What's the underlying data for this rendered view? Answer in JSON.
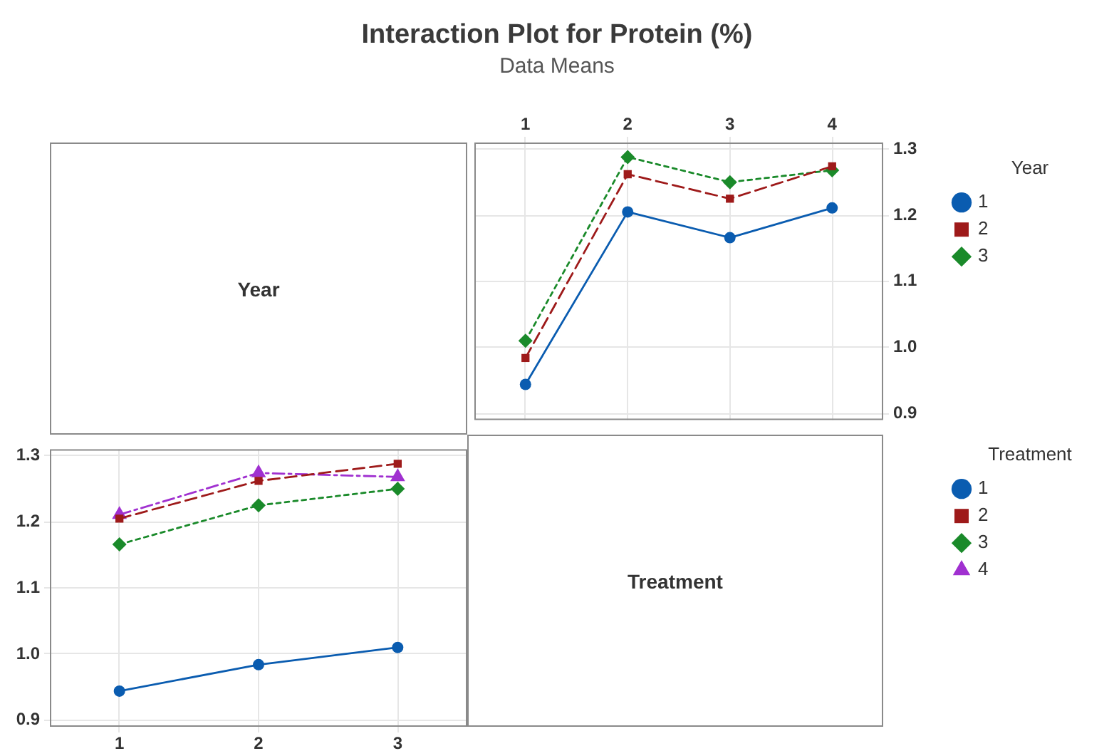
{
  "chart_data": [
    {
      "type": "other",
      "title": "Interaction Plot for Protein (%)",
      "subtitle": "Data Means",
      "annotations": [
        "Year"
      ]
    },
    {
      "type": "line",
      "categories": [
        "1",
        "2",
        "3",
        "4"
      ],
      "series": [
        {
          "name": "1",
          "color": "#0a5cb0",
          "marker": "circle",
          "line_style": "solid",
          "values": [
            0.944,
            1.205,
            1.166,
            1.211
          ]
        },
        {
          "name": "2",
          "color": "#9e1a1a",
          "marker": "square",
          "line_style": "dashed",
          "values": [
            0.984,
            1.262,
            1.225,
            1.274
          ]
        },
        {
          "name": "3",
          "color": "#1a8a2a",
          "marker": "diamond",
          "line_style": "dotted",
          "values": [
            1.01,
            1.288,
            1.25,
            1.268
          ]
        }
      ],
      "ylim": [
        0.89,
        1.31
      ],
      "yticks": [
        0.9,
        {
          "value": 1,
          "label": "1.0"
        },
        1.1,
        1.2,
        1.3
      ],
      "grid": true,
      "legend": "right",
      "legend_title": "Year"
    },
    {
      "type": "line",
      "categories": [
        "1",
        "2",
        "3"
      ],
      "series": [
        {
          "name": "1",
          "color": "#0a5cb0",
          "marker": "circle",
          "line_style": "solid",
          "values": [
            0.944,
            0.984,
            1.01
          ]
        },
        {
          "name": "2",
          "color": "#9e1a1a",
          "marker": "square",
          "line_style": "dashed",
          "values": [
            1.205,
            1.262,
            1.288
          ]
        },
        {
          "name": "3",
          "color": "#1a8a2a",
          "marker": "diamond",
          "line_style": "dotted",
          "values": [
            1.166,
            1.225,
            1.25
          ]
        },
        {
          "name": "4",
          "color": "#a030d0",
          "marker": "triangle",
          "line_style": "dashdot",
          "values": [
            1.211,
            1.274,
            1.268
          ]
        }
      ],
      "ylim": [
        0.89,
        1.31
      ],
      "yticks": [
        0.9,
        {
          "value": 1,
          "label": "1.0"
        },
        1.1,
        1.2,
        1.3
      ],
      "grid": true,
      "legend": "right",
      "legend_title": "Treatment"
    },
    {
      "type": "other",
      "annotations": [
        "Treatment"
      ]
    }
  ]
}
